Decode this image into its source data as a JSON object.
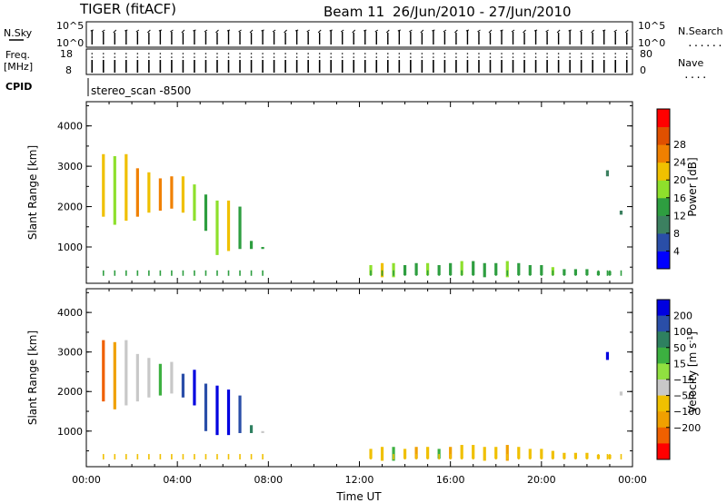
{
  "header": {
    "station": "TIGER (fitACF)",
    "beam_label": "Beam 11",
    "date_range": "26/Jun/2010 - 27/Jun/2010"
  },
  "strip": {
    "nsky_label": "N.Sky",
    "nsky_ticks": [
      "10^5",
      "10^0"
    ],
    "nsearch_ticks": [
      "10^5",
      "10^0"
    ],
    "nsearch_label": "N.Search",
    "freq_label": "Freq.",
    "freq_unit": "[MHz]",
    "freq_ticks": [
      "18",
      "8"
    ],
    "nave_ticks": [
      "80",
      "0"
    ],
    "nave_label": "Nave",
    "cpid_label": "CPID",
    "cpid_value": "stereo_scan -8500",
    "dotted": "......",
    "dotted_short": "...."
  },
  "colors": {
    "power": [
      "#0000ff",
      "#2a4ea8",
      "#3c8060",
      "#2e9e40",
      "#8ee02c",
      "#f0c000",
      "#f08000",
      "#e05000",
      "#ff0000"
    ],
    "velocity": [
      "#0000e0",
      "#2a4ea8",
      "#2e8060",
      "#3cb040",
      "#90e040",
      "#c8c8c8",
      "#f0c000",
      "#f0a000",
      "#f06000",
      "#ff0000"
    ]
  },
  "chart_data": [
    {
      "type": "heatmap",
      "name": "power",
      "ylabel": "Slant Range [km]",
      "xlabel": "",
      "xlim": [
        "00:00",
        "24:00"
      ],
      "ylim": [
        100,
        4600
      ],
      "y_ticks": [
        "1000",
        "2000",
        "3000",
        "4000"
      ],
      "colorbar": {
        "label": "Power [dB]",
        "ticks": [
          "4",
          "8",
          "12",
          "16",
          "20",
          "24",
          "28"
        ],
        "range": [
          0,
          32
        ]
      },
      "scans": [
        {
          "t": 0.75,
          "r": [
            [
              1750,
              3300,
              18
            ]
          ]
        },
        {
          "t": 1.25,
          "r": [
            [
              1550,
              3250,
              16
            ]
          ]
        },
        {
          "t": 1.75,
          "r": [
            [
              1650,
              3300,
              20
            ]
          ]
        },
        {
          "t": 2.25,
          "r": [
            [
              1750,
              2950,
              22
            ]
          ]
        },
        {
          "t": 2.75,
          "r": [
            [
              1850,
              2850,
              20
            ]
          ]
        },
        {
          "t": 3.25,
          "r": [
            [
              1900,
              2700,
              24
            ]
          ]
        },
        {
          "t": 3.75,
          "r": [
            [
              1950,
              2750,
              22
            ]
          ]
        },
        {
          "t": 4.25,
          "r": [
            [
              1850,
              2750,
              20
            ]
          ]
        },
        {
          "t": 4.75,
          "r": [
            [
              1650,
              2550,
              16
            ]
          ]
        },
        {
          "t": 5.25,
          "r": [
            [
              1400,
              2300,
              14
            ]
          ]
        },
        {
          "t": 5.75,
          "r": [
            [
              800,
              2150,
              16
            ]
          ]
        },
        {
          "t": 6.25,
          "r": [
            [
              900,
              2150,
              20
            ]
          ]
        },
        {
          "t": 6.75,
          "r": [
            [
              950,
              2000,
              12
            ]
          ]
        },
        {
          "t": 7.25,
          "r": [
            [
              950,
              1150,
              14
            ]
          ]
        },
        {
          "t": 7.75,
          "r": [
            [
              950,
              1000,
              12
            ]
          ]
        },
        {
          "t": 12.5,
          "r": [
            [
              300,
              550,
              16
            ]
          ]
        },
        {
          "t": 13.0,
          "r": [
            [
              250,
              600,
              18
            ]
          ]
        },
        {
          "t": 13.5,
          "r": [
            [
              250,
              600,
              16
            ]
          ]
        },
        {
          "t": 14.0,
          "r": [
            [
              300,
              550,
              14
            ]
          ]
        },
        {
          "t": 14.5,
          "r": [
            [
              300,
              600,
              12
            ]
          ]
        },
        {
          "t": 15.0,
          "r": [
            [
              300,
              600,
              16
            ]
          ]
        },
        {
          "t": 15.5,
          "r": [
            [
              300,
              550,
              14
            ]
          ]
        },
        {
          "t": 16.0,
          "r": [
            [
              300,
              600,
              12
            ]
          ]
        },
        {
          "t": 16.5,
          "r": [
            [
              300,
              650,
              16
            ]
          ]
        },
        {
          "t": 17.0,
          "r": [
            [
              300,
              650,
              12
            ]
          ]
        },
        {
          "t": 17.5,
          "r": [
            [
              250,
              600,
              14
            ]
          ]
        },
        {
          "t": 18.0,
          "r": [
            [
              300,
              600,
              12
            ]
          ]
        },
        {
          "t": 18.5,
          "r": [
            [
              250,
              650,
              16
            ]
          ]
        },
        {
          "t": 19.0,
          "r": [
            [
              300,
              600,
              12
            ]
          ]
        },
        {
          "t": 19.5,
          "r": [
            [
              300,
              550,
              14
            ]
          ]
        },
        {
          "t": 20.0,
          "r": [
            [
              300,
              550,
              12
            ]
          ]
        },
        {
          "t": 20.5,
          "r": [
            [
              300,
              500,
              16
            ]
          ]
        },
        {
          "t": 21.0,
          "r": [
            [
              300,
              450,
              12
            ]
          ]
        },
        {
          "t": 21.5,
          "r": [
            [
              300,
              450,
              14
            ]
          ]
        },
        {
          "t": 22.0,
          "r": [
            [
              300,
              450,
              12
            ]
          ]
        },
        {
          "t": 22.5,
          "r": [
            [
              300,
              400,
              14
            ]
          ]
        },
        {
          "t": 23.0,
          "r": [
            [
              300,
              400,
              12
            ]
          ]
        },
        {
          "t": 22.9,
          "r": [
            [
              2750,
              2900,
              10
            ]
          ]
        },
        {
          "t": 23.5,
          "r": [
            [
              1800,
              1900,
              8
            ]
          ]
        }
      ]
    },
    {
      "type": "heatmap",
      "name": "velocity",
      "ylabel": "Slant Range [km]",
      "xlabel": "Time UT",
      "xlim": [
        "00:00",
        "24:00"
      ],
      "x_ticks": [
        "00:00",
        "04:00",
        "08:00",
        "12:00",
        "16:00",
        "20:00",
        "00:00"
      ],
      "ylim": [
        100,
        4600
      ],
      "y_ticks": [
        "1000",
        "2000",
        "3000",
        "4000"
      ],
      "colorbar": {
        "label": "Velocity [m s^-1]",
        "ticks": [
          "200",
          "100",
          "50",
          "15",
          "-15",
          "-50",
          "-100",
          "-200"
        ],
        "range": [
          -300,
          300
        ]
      },
      "scans": [
        {
          "t": 0.75,
          "r": [
            [
              1750,
              3300,
              -150
            ]
          ]
        },
        {
          "t": 1.25,
          "r": [
            [
              1550,
              3250,
              -100
            ]
          ]
        },
        {
          "t": 1.75,
          "r": [
            [
              1650,
              3300,
              0
            ]
          ]
        },
        {
          "t": 2.25,
          "r": [
            [
              1750,
              2950,
              0
            ]
          ]
        },
        {
          "t": 2.75,
          "r": [
            [
              1850,
              2850,
              0
            ]
          ]
        },
        {
          "t": 3.25,
          "r": [
            [
              1900,
              2700,
              20
            ]
          ]
        },
        {
          "t": 3.75,
          "r": [
            [
              1950,
              2750,
              0
            ]
          ]
        },
        {
          "t": 4.25,
          "r": [
            [
              1850,
              2450,
              150
            ]
          ]
        },
        {
          "t": 4.75,
          "r": [
            [
              1650,
              2550,
              250
            ]
          ]
        },
        {
          "t": 5.25,
          "r": [
            [
              1000,
              2200,
              200
            ]
          ]
        },
        {
          "t": 5.75,
          "r": [
            [
              900,
              2150,
              250
            ]
          ]
        },
        {
          "t": 6.25,
          "r": [
            [
              900,
              2050,
              250
            ]
          ]
        },
        {
          "t": 6.75,
          "r": [
            [
              950,
              1900,
              200
            ]
          ]
        },
        {
          "t": 7.25,
          "r": [
            [
              950,
              1150,
              60
            ]
          ]
        },
        {
          "t": 7.75,
          "r": [
            [
              950,
              1000,
              0
            ]
          ]
        },
        {
          "t": 12.5,
          "r": [
            [
              300,
              550,
              -30
            ]
          ]
        },
        {
          "t": 13.0,
          "r": [
            [
              250,
              600,
              -40
            ]
          ]
        },
        {
          "t": 13.5,
          "r": [
            [
              250,
              600,
              40
            ]
          ]
        },
        {
          "t": 14.0,
          "r": [
            [
              300,
              550,
              -30
            ]
          ]
        },
        {
          "t": 14.5,
          "r": [
            [
              300,
              600,
              -60
            ]
          ]
        },
        {
          "t": 15.0,
          "r": [
            [
              300,
              600,
              -30
            ]
          ]
        },
        {
          "t": 15.5,
          "r": [
            [
              300,
              550,
              20
            ]
          ]
        },
        {
          "t": 16.0,
          "r": [
            [
              300,
              600,
              -60
            ]
          ]
        },
        {
          "t": 16.5,
          "r": [
            [
              300,
              650,
              -40
            ]
          ]
        },
        {
          "t": 17.0,
          "r": [
            [
              300,
              650,
              -30
            ]
          ]
        },
        {
          "t": 17.5,
          "r": [
            [
              250,
              600,
              -50
            ]
          ]
        },
        {
          "t": 18.0,
          "r": [
            [
              300,
              600,
              -40
            ]
          ]
        },
        {
          "t": 18.5,
          "r": [
            [
              250,
              650,
              -60
            ]
          ]
        },
        {
          "t": 19.0,
          "r": [
            [
              300,
              600,
              -30
            ]
          ]
        },
        {
          "t": 19.5,
          "r": [
            [
              300,
              550,
              -50
            ]
          ]
        },
        {
          "t": 20.0,
          "r": [
            [
              300,
              550,
              -40
            ]
          ]
        },
        {
          "t": 20.5,
          "r": [
            [
              300,
              500,
              -30
            ]
          ]
        },
        {
          "t": 21.0,
          "r": [
            [
              300,
              450,
              -30
            ]
          ]
        },
        {
          "t": 21.5,
          "r": [
            [
              300,
              450,
              -40
            ]
          ]
        },
        {
          "t": 22.0,
          "r": [
            [
              300,
              450,
              -30
            ]
          ]
        },
        {
          "t": 22.5,
          "r": [
            [
              300,
              400,
              -30
            ]
          ]
        },
        {
          "t": 23.0,
          "r": [
            [
              300,
              400,
              -20
            ]
          ]
        },
        {
          "t": 22.9,
          "r": [
            [
              2800,
              3000,
              250
            ]
          ]
        },
        {
          "t": 23.5,
          "r": [
            [
              1900,
              2000,
              0
            ]
          ]
        }
      ]
    }
  ]
}
